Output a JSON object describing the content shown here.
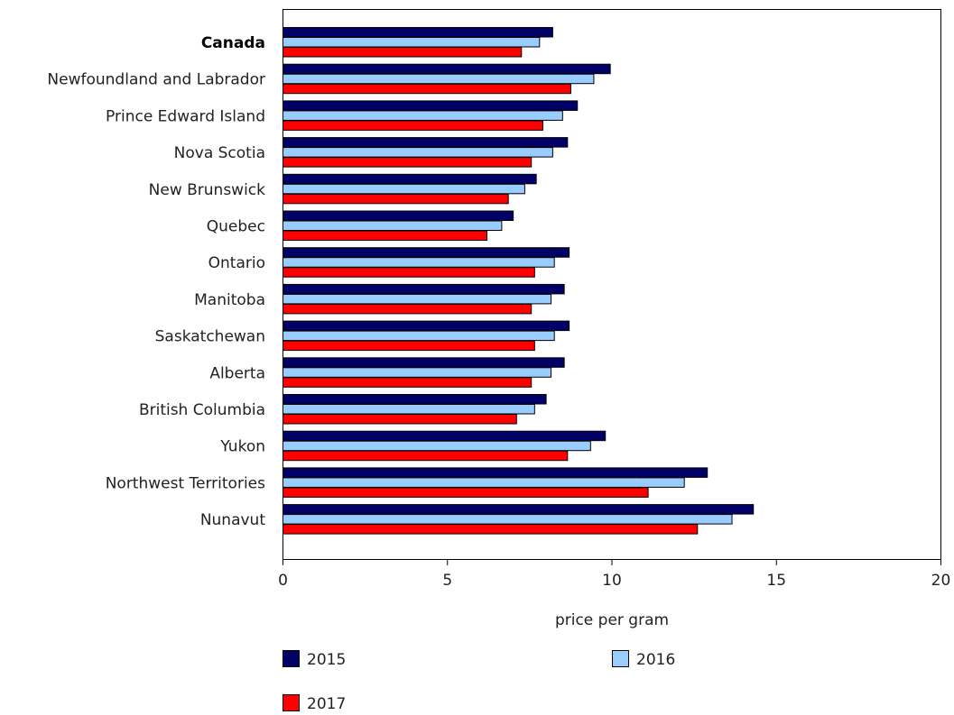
{
  "chart_data": {
    "type": "bar",
    "orientation": "horizontal",
    "title": "",
    "xlabel": "price per gram",
    "ylabel": "",
    "xlim": [
      0,
      20
    ],
    "xticks": [
      0,
      5,
      10,
      15,
      20
    ],
    "grid": false,
    "legend_position": "bottom",
    "categories": [
      "Canada",
      "Newfoundland and Labrador",
      "Prince Edward Island",
      "Nova Scotia",
      "New Brunswick",
      "Quebec",
      "Ontario",
      "Manitoba",
      "Saskatchewan",
      "Alberta",
      "British Columbia",
      "Yukon",
      "Northwest Territories",
      "Nunavut"
    ],
    "bold_categories": [
      "Canada"
    ],
    "series": [
      {
        "name": "2015",
        "color": "#000066",
        "values": [
          8.2,
          9.95,
          8.95,
          8.65,
          7.7,
          7.0,
          8.7,
          8.55,
          8.7,
          8.55,
          8.0,
          9.8,
          12.9,
          14.3
        ]
      },
      {
        "name": "2016",
        "color": "#99ccff",
        "values": [
          7.8,
          9.45,
          8.5,
          8.2,
          7.35,
          6.65,
          8.25,
          8.15,
          8.25,
          8.15,
          7.65,
          9.35,
          12.2,
          13.65
        ]
      },
      {
        "name": "2017",
        "color": "#ff0000",
        "values": [
          7.25,
          8.75,
          7.9,
          7.55,
          6.85,
          6.2,
          7.65,
          7.55,
          7.65,
          7.55,
          7.1,
          8.65,
          11.1,
          12.6
        ]
      }
    ]
  }
}
